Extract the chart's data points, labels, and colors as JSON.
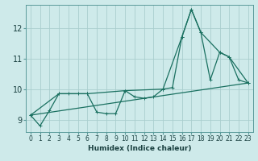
{
  "xlabel": "Humidex (Indice chaleur)",
  "background_color": "#ceeaea",
  "grid_color": "#aacece",
  "line_color": "#1a7060",
  "xlim": [
    -0.5,
    23.5
  ],
  "ylim": [
    8.6,
    12.75
  ],
  "yticks": [
    9,
    10,
    11,
    12
  ],
  "xticks": [
    0,
    1,
    2,
    3,
    4,
    5,
    6,
    7,
    8,
    9,
    10,
    11,
    12,
    13,
    14,
    15,
    16,
    17,
    18,
    19,
    20,
    21,
    22,
    23
  ],
  "curve1_x": [
    0,
    1,
    2,
    3,
    4,
    5,
    6,
    7,
    8,
    9,
    10,
    11,
    12,
    13,
    14,
    15,
    16,
    17,
    18,
    19,
    20,
    21,
    22,
    23
  ],
  "curve1_y": [
    9.15,
    8.8,
    9.3,
    9.85,
    9.85,
    9.85,
    9.85,
    9.25,
    9.2,
    9.2,
    9.95,
    9.75,
    9.7,
    9.75,
    10.0,
    10.05,
    11.7,
    12.6,
    11.85,
    10.3,
    11.2,
    11.05,
    10.3,
    10.2
  ],
  "curve2_x": [
    0,
    3,
    6,
    10,
    14,
    16,
    17,
    18,
    20,
    21,
    23
  ],
  "curve2_y": [
    9.15,
    9.85,
    9.85,
    9.95,
    10.0,
    11.7,
    12.6,
    11.85,
    11.2,
    11.05,
    10.2
  ],
  "curve3_x": [
    0,
    23
  ],
  "curve3_y": [
    9.15,
    10.2
  ],
  "marker_size": 3.5,
  "linewidth": 0.9,
  "tick_fontsize": 5.5,
  "xlabel_fontsize": 6.5,
  "ylabel_fontsize": 7
}
